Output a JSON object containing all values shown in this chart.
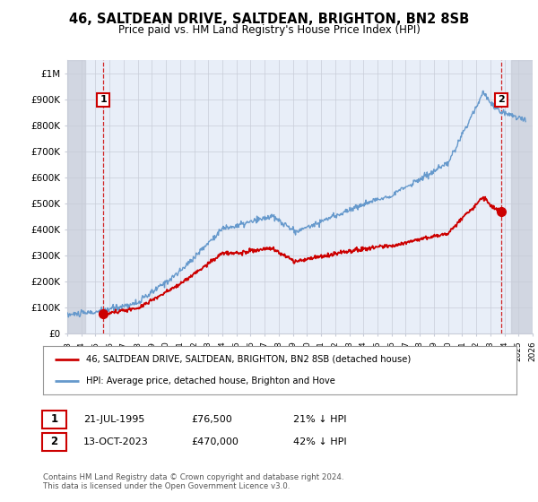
{
  "title": "46, SALTDEAN DRIVE, SALTDEAN, BRIGHTON, BN2 8SB",
  "subtitle": "Price paid vs. HM Land Registry's House Price Index (HPI)",
  "ylim": [
    0,
    1050000
  ],
  "xlim_start": 1993,
  "xlim_end": 2026,
  "sale1_date": 1995.55,
  "sale1_price": 76500,
  "sale2_date": 2023.78,
  "sale2_price": 470000,
  "red_line_color": "#cc0000",
  "blue_line_color": "#6699cc",
  "marker_color": "#cc0000",
  "bg_color": "#e8eef8",
  "grid_color": "#c8ccd8",
  "annotation1_label": "1",
  "annotation2_label": "2",
  "legend_label1": "46, SALTDEAN DRIVE, SALTDEAN, BRIGHTON, BN2 8SB (detached house)",
  "legend_label2": "HPI: Average price, detached house, Brighton and Hove",
  "footnote1_label": "1",
  "footnote1_date": "21-JUL-1995",
  "footnote1_price": "£76,500",
  "footnote1_hpi": "21% ↓ HPI",
  "footnote2_label": "2",
  "footnote2_date": "13-OCT-2023",
  "footnote2_price": "£470,000",
  "footnote2_hpi": "42% ↓ HPI",
  "copyright": "Contains HM Land Registry data © Crown copyright and database right 2024.\nThis data is licensed under the Open Government Licence v3.0."
}
